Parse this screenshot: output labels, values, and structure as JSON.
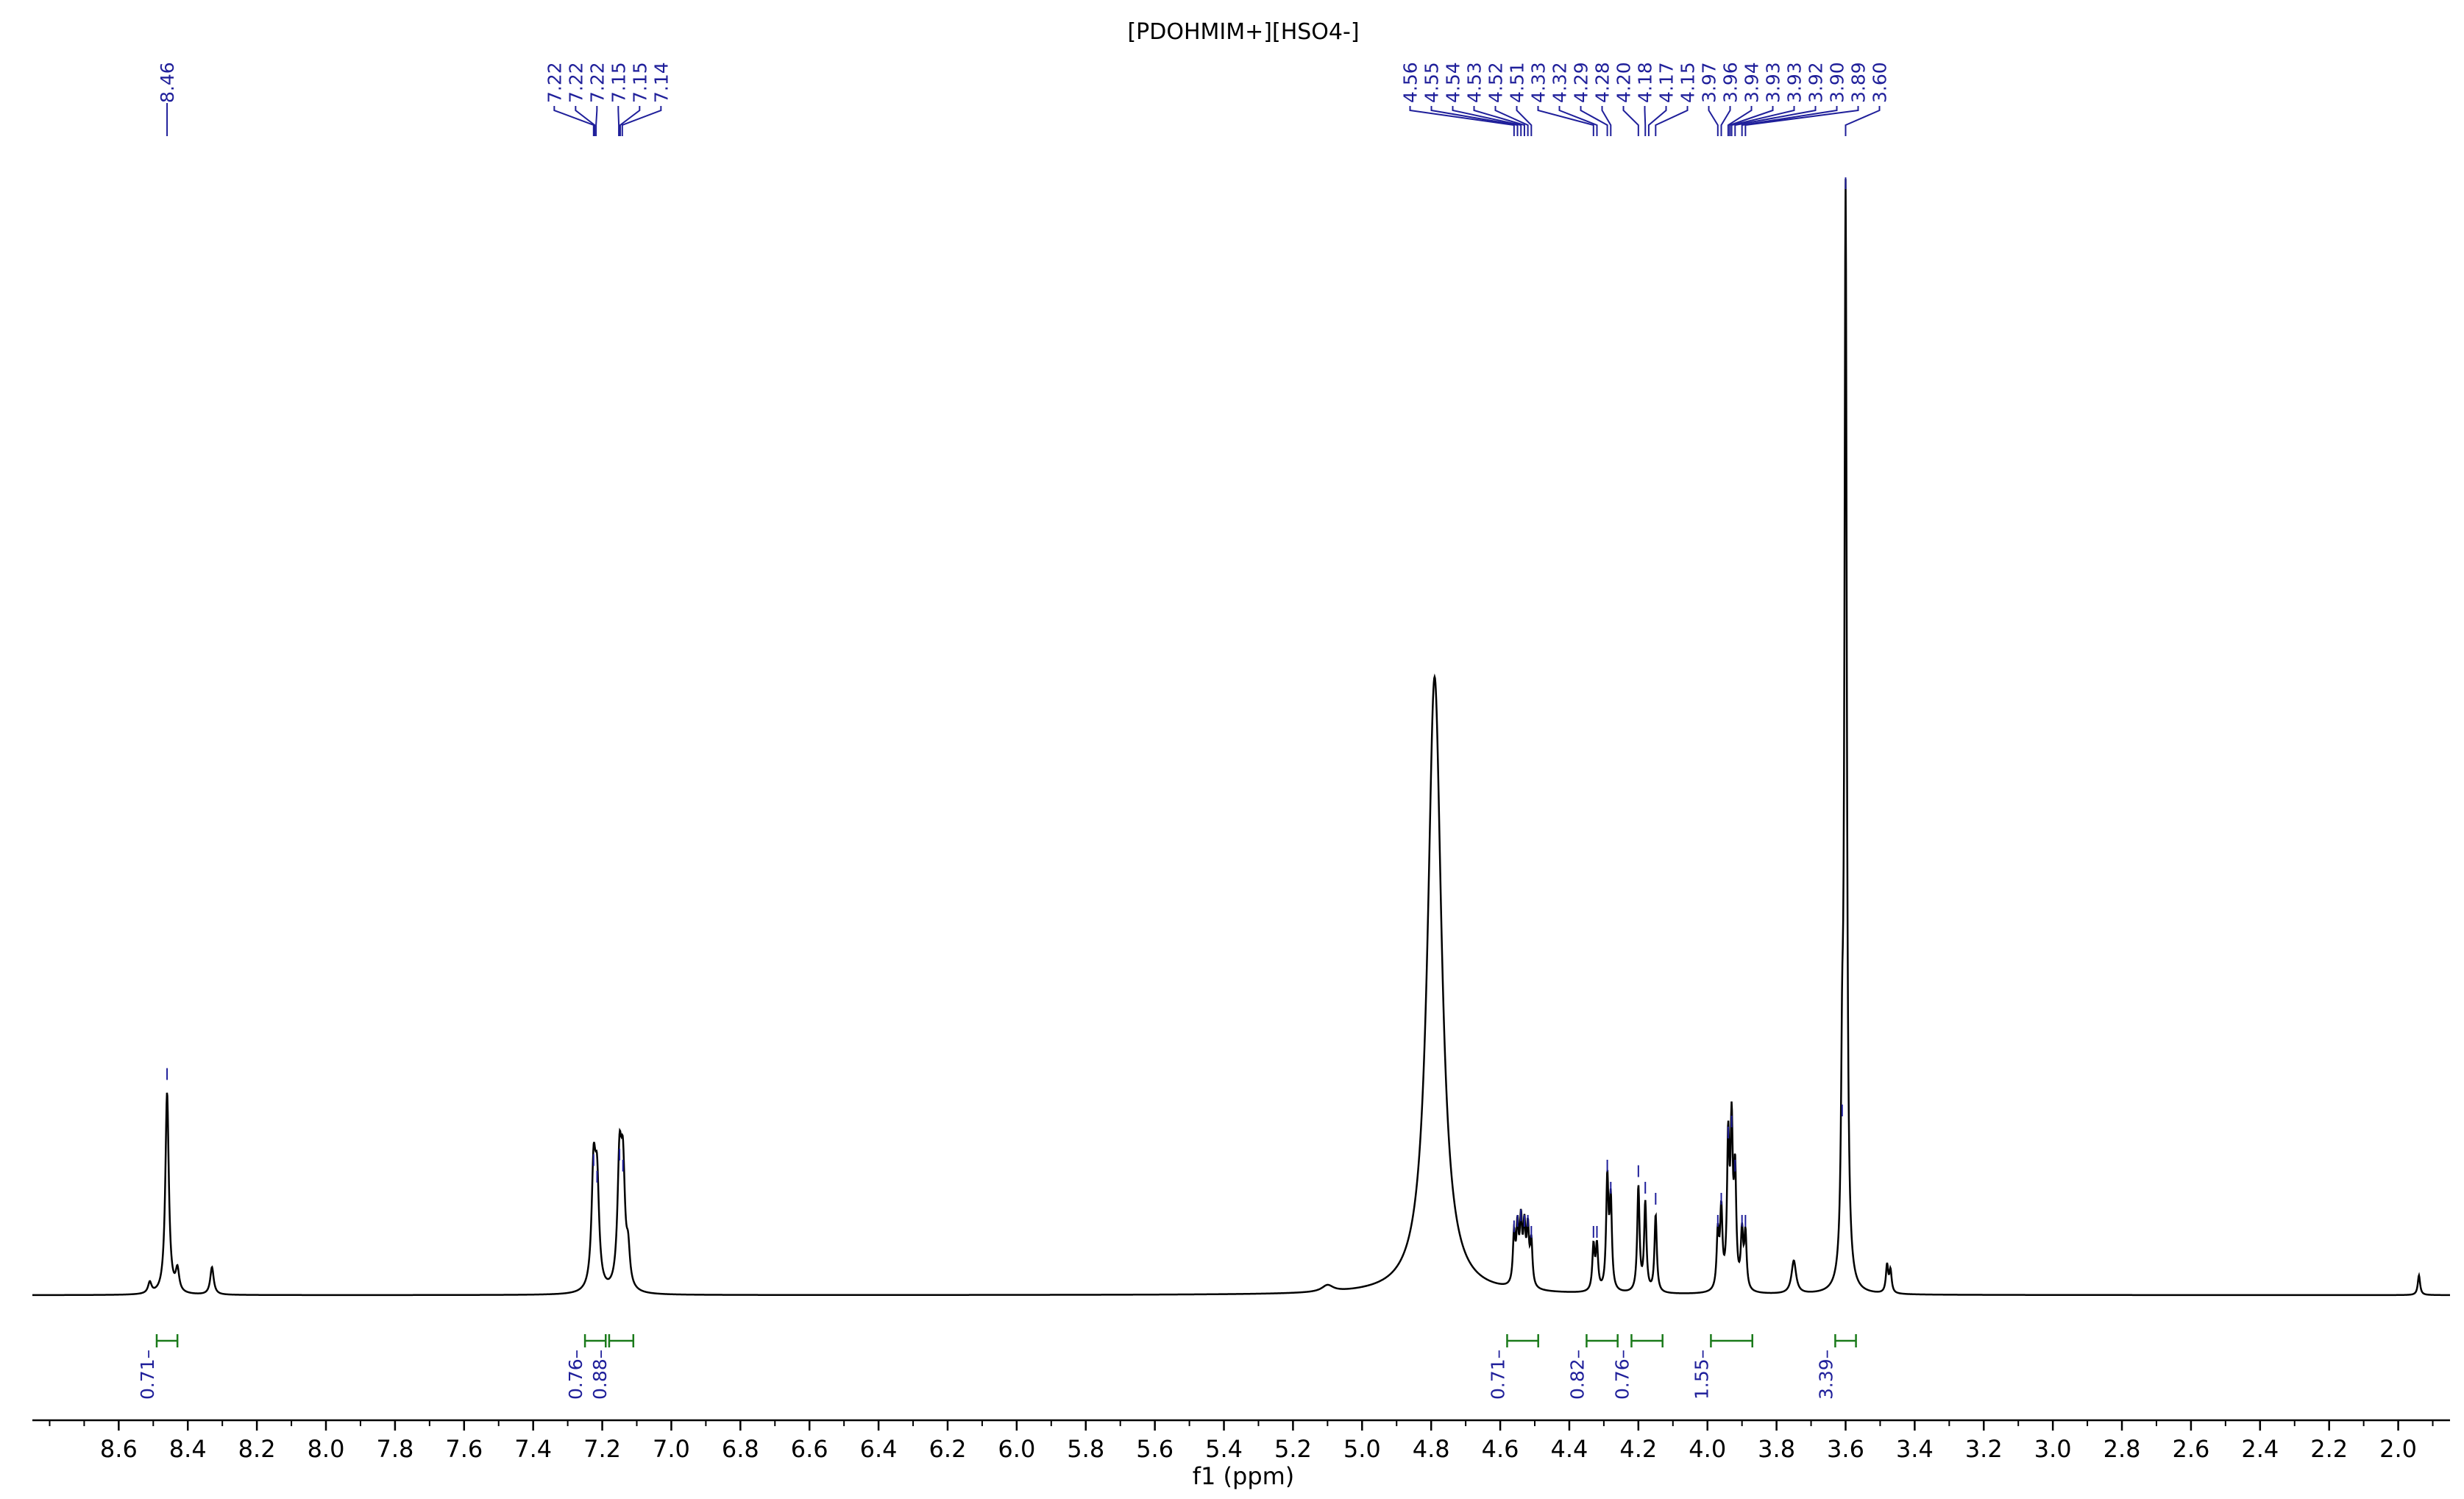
{
  "chart_data": {
    "type": "line",
    "title": "[PDOHMIM+][HSO4-]",
    "xlabel": "f1 (ppm)",
    "xlim": [
      8.85,
      1.85
    ],
    "x_reversed": true,
    "ylim": [
      0,
      1.0
    ],
    "grid": false,
    "legend": "none",
    "x_ticks": [
      8.6,
      8.4,
      8.2,
      8.0,
      7.8,
      7.6,
      7.4,
      7.2,
      7.0,
      6.8,
      6.6,
      6.4,
      6.2,
      6.0,
      5.8,
      5.6,
      5.4,
      5.2,
      5.0,
      4.8,
      4.6,
      4.4,
      4.2,
      4.0,
      3.8,
      3.6,
      3.4,
      3.2,
      3.0,
      2.8,
      2.6,
      2.4,
      2.2,
      2.0
    ],
    "x_tick_labels": [
      "8.6",
      "8.4",
      "8.2",
      "8.0",
      "7.8",
      "7.6",
      "7.4",
      "7.2",
      "7.0",
      "6.8",
      "6.6",
      "6.4",
      "6.2",
      "6.0",
      "5.8",
      "5.6",
      "5.4",
      "5.2",
      "5.0",
      "4.8",
      "4.6",
      "4.4",
      "4.2",
      "4.0",
      "3.8",
      "3.6",
      "3.4",
      "3.2",
      "3.0",
      "2.8",
      "2.6",
      "2.4",
      "2.2",
      "2.0"
    ],
    "peaks": [
      {
        "ppm": 8.46,
        "height": 0.183,
        "width": 0.006
      },
      {
        "ppm": 8.43,
        "height": 0.02,
        "width": 0.006
      },
      {
        "ppm": 8.51,
        "height": 0.01,
        "width": 0.006
      },
      {
        "ppm": 8.33,
        "height": 0.025,
        "width": 0.006
      },
      {
        "ppm": 7.225,
        "height": 0.105,
        "width": 0.007
      },
      {
        "ppm": 7.215,
        "height": 0.09,
        "width": 0.007
      },
      {
        "ppm": 7.15,
        "height": 0.11,
        "width": 0.007
      },
      {
        "ppm": 7.14,
        "height": 0.1,
        "width": 0.007
      },
      {
        "ppm": 7.125,
        "height": 0.03,
        "width": 0.006
      },
      {
        "ppm": 5.1,
        "height": 0.006,
        "width": 0.02
      },
      {
        "ppm": 4.79,
        "height": 0.56,
        "width": 0.024
      },
      {
        "ppm": 4.56,
        "height": 0.045,
        "width": 0.004
      },
      {
        "ppm": 4.55,
        "height": 0.05,
        "width": 0.004
      },
      {
        "ppm": 4.54,
        "height": 0.055,
        "width": 0.004
      },
      {
        "ppm": 4.53,
        "height": 0.05,
        "width": 0.004
      },
      {
        "ppm": 4.52,
        "height": 0.05,
        "width": 0.004
      },
      {
        "ppm": 4.51,
        "height": 0.04,
        "width": 0.004
      },
      {
        "ppm": 4.33,
        "height": 0.04,
        "width": 0.004
      },
      {
        "ppm": 4.32,
        "height": 0.04,
        "width": 0.004
      },
      {
        "ppm": 4.29,
        "height": 0.1,
        "width": 0.004
      },
      {
        "ppm": 4.28,
        "height": 0.08,
        "width": 0.004
      },
      {
        "ppm": 4.2,
        "height": 0.095,
        "width": 0.004
      },
      {
        "ppm": 4.18,
        "height": 0.08,
        "width": 0.004
      },
      {
        "ppm": 4.15,
        "height": 0.07,
        "width": 0.004
      },
      {
        "ppm": 3.97,
        "height": 0.05,
        "width": 0.004
      },
      {
        "ppm": 3.96,
        "height": 0.07,
        "width": 0.004
      },
      {
        "ppm": 3.94,
        "height": 0.13,
        "width": 0.004
      },
      {
        "ppm": 3.93,
        "height": 0.14,
        "width": 0.004
      },
      {
        "ppm": 3.92,
        "height": 0.1,
        "width": 0.004
      },
      {
        "ppm": 3.9,
        "height": 0.05,
        "width": 0.004
      },
      {
        "ppm": 3.89,
        "height": 0.05,
        "width": 0.004
      },
      {
        "ppm": 3.75,
        "height": 0.03,
        "width": 0.008
      },
      {
        "ppm": 3.6,
        "height": 0.99,
        "width": 0.004
      },
      {
        "ppm": 3.61,
        "height": 0.15,
        "width": 0.004
      },
      {
        "ppm": 3.48,
        "height": 0.025,
        "width": 0.004
      },
      {
        "ppm": 3.47,
        "height": 0.02,
        "width": 0.004
      },
      {
        "ppm": 1.94,
        "height": 0.018,
        "width": 0.004
      }
    ],
    "peak_labels": [
      "8.46",
      "7.22",
      "7.22",
      "7.22",
      "7.15",
      "7.15",
      "7.14",
      "4.56",
      "4.55",
      "4.54",
      "4.53",
      "4.52",
      "4.51",
      "4.33",
      "4.32",
      "4.29",
      "4.28",
      "4.20",
      "4.18",
      "4.17",
      "4.15",
      "3.97",
      "3.96",
      "3.94",
      "3.93",
      "3.93",
      "3.92",
      "3.90",
      "3.89",
      "3.60"
    ],
    "peak_label_groups": [
      {
        "labels": [
          0
        ],
        "ppm": [
          8.46
        ]
      },
      {
        "labels": [
          1,
          2,
          3,
          4,
          5,
          6
        ],
        "ppm": [
          7.225,
          7.222,
          7.218,
          7.152,
          7.148,
          7.142
        ]
      },
      {
        "labels": [
          7,
          8,
          9,
          10,
          11,
          12,
          13,
          14,
          15,
          16,
          17,
          18,
          19,
          20,
          21,
          22,
          23,
          24,
          25,
          26,
          27,
          28,
          29
        ],
        "ppm": [
          4.56,
          4.55,
          4.54,
          4.53,
          4.52,
          4.51,
          4.33,
          4.32,
          4.29,
          4.28,
          4.2,
          4.18,
          4.17,
          4.15,
          3.97,
          3.96,
          3.94,
          3.935,
          3.93,
          3.92,
          3.9,
          3.89,
          3.6
        ]
      }
    ],
    "integrals": [
      {
        "label": "0.71",
        "from": 8.49,
        "to": 8.43
      },
      {
        "label": "0.76",
        "from": 7.25,
        "to": 7.19
      },
      {
        "label": "0.88",
        "from": 7.18,
        "to": 7.11
      },
      {
        "label": "0.71",
        "from": 4.58,
        "to": 4.49
      },
      {
        "label": "0.82",
        "from": 4.35,
        "to": 4.26
      },
      {
        "label": "0.76",
        "from": 4.22,
        "to": 4.13
      },
      {
        "label": "1.55",
        "from": 3.99,
        "to": 3.87
      },
      {
        "label": "3.39",
        "from": 3.63,
        "to": 3.57
      }
    ],
    "colors": {
      "spectrum": "#000000",
      "peak_label": "#1f1f9a",
      "integral": "#1a7a1a",
      "integral_label": "#1f1f9a",
      "axis": "#000000"
    }
  }
}
